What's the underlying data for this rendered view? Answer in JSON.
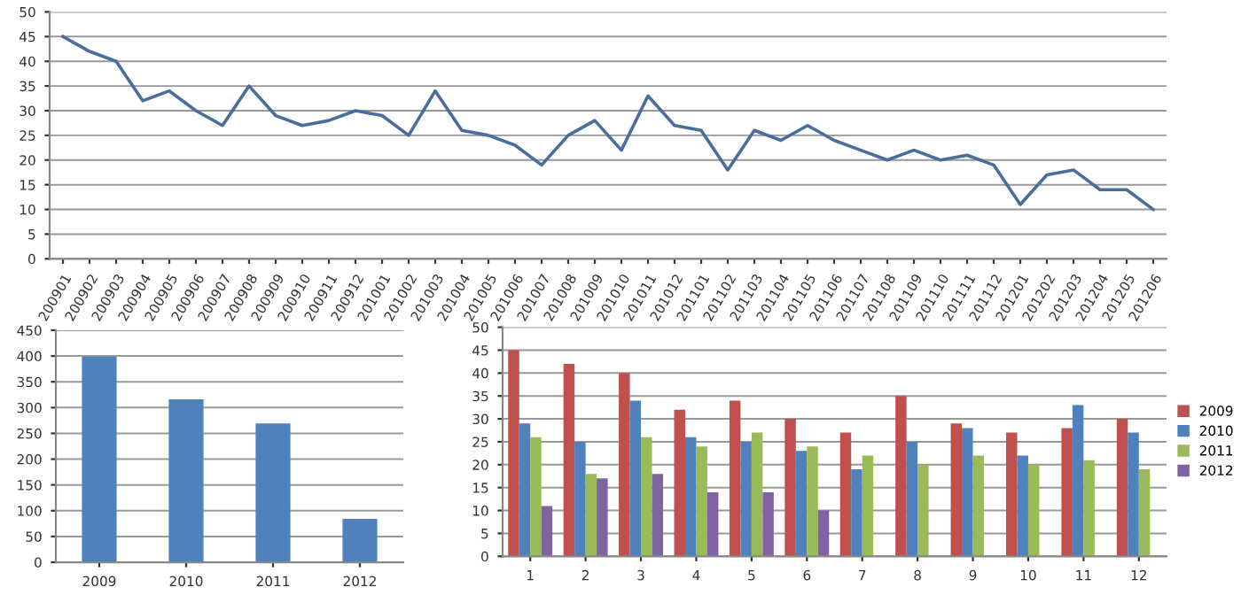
{
  "chart_data": [
    {
      "type": "line",
      "categories": [
        "200901",
        "200902",
        "200903",
        "200904",
        "200905",
        "200906",
        "200907",
        "200908",
        "200909",
        "200910",
        "200911",
        "200912",
        "201001",
        "201002",
        "201003",
        "201004",
        "201005",
        "201006",
        "201007",
        "201008",
        "201009",
        "201010",
        "201011",
        "201012",
        "201101",
        "201102",
        "201103",
        "201104",
        "201105",
        "201106",
        "201107",
        "201108",
        "201109",
        "201110",
        "201111",
        "201112",
        "201201",
        "201202",
        "201203",
        "201204",
        "201205",
        "201206"
      ],
      "series": [
        {
          "color": "#4a6e9c",
          "values": [
            45,
            42,
            40,
            32,
            34,
            30,
            27,
            35,
            29,
            27,
            28,
            30,
            29,
            25,
            34,
            26,
            25,
            23,
            19,
            25,
            28,
            22,
            33,
            27,
            26,
            18,
            26,
            24,
            27,
            24,
            22,
            20,
            22,
            20,
            21,
            19,
            11,
            17,
            18,
            14,
            14,
            10
          ]
        }
      ],
      "ylim": [
        0,
        50
      ],
      "yticks": [
        0,
        5,
        10,
        15,
        20,
        25,
        30,
        35,
        40,
        45,
        50
      ],
      "grid": "y",
      "legend": false
    },
    {
      "type": "bar",
      "categories": [
        "2009",
        "2010",
        "2011",
        "2012"
      ],
      "series": [
        {
          "color": "#4f81bd",
          "values": [
            399,
            316,
            269,
            84
          ]
        }
      ],
      "ylim": [
        0,
        450
      ],
      "yticks": [
        0,
        50,
        100,
        150,
        200,
        250,
        300,
        350,
        400,
        450
      ],
      "grid": "y",
      "legend": false
    },
    {
      "type": "bar",
      "categories": [
        "1",
        "2",
        "3",
        "4",
        "5",
        "6",
        "7",
        "8",
        "9",
        "10",
        "11",
        "12"
      ],
      "series": [
        {
          "name": "2009",
          "color": "#c0504d",
          "values": [
            45,
            42,
            40,
            32,
            34,
            30,
            27,
            35,
            29,
            27,
            28,
            30
          ]
        },
        {
          "name": "2010",
          "color": "#4f81bd",
          "values": [
            29,
            25,
            34,
            26,
            25,
            23,
            19,
            25,
            28,
            22,
            33,
            27
          ]
        },
        {
          "name": "2011",
          "color": "#9bbb59",
          "values": [
            26,
            18,
            26,
            24,
            27,
            24,
            22,
            20,
            22,
            20,
            21,
            19
          ]
        },
        {
          "name": "2012",
          "color": "#8064a2",
          "values": [
            11,
            17,
            18,
            14,
            14,
            10,
            null,
            null,
            null,
            null,
            null,
            null
          ]
        }
      ],
      "ylim": [
        0,
        50
      ],
      "yticks": [
        0,
        5,
        10,
        15,
        20,
        25,
        30,
        35,
        40,
        45,
        50
      ],
      "grid": "y",
      "legend": "right"
    }
  ]
}
